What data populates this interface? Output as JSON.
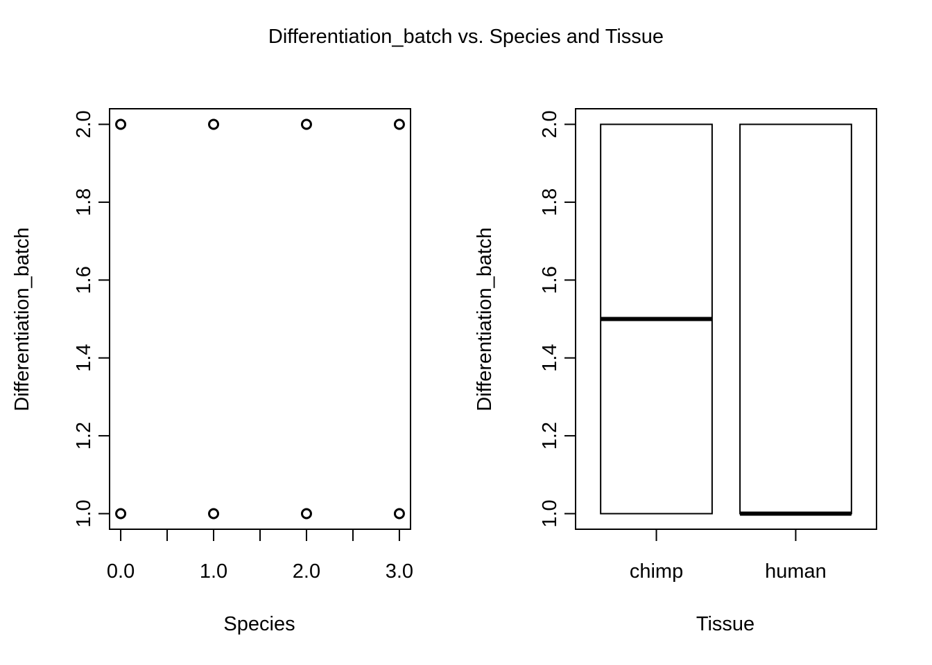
{
  "figure": {
    "title": "Differentiation_batch vs. Species and Tissue"
  },
  "chart_data": [
    {
      "type": "scatter",
      "xlabel": "Species",
      "ylabel": "Differentiation_batch",
      "xlim": [
        -0.12,
        3.12
      ],
      "ylim": [
        0.96,
        2.04
      ],
      "x_ticks": [
        0,
        0.5,
        1,
        1.5,
        2,
        2.5,
        3
      ],
      "x_tick_labels": [
        {
          "value": 0,
          "label": "0.0"
        },
        {
          "value": 1,
          "label": "1.0"
        },
        {
          "value": 2,
          "label": "2.0"
        },
        {
          "value": 3,
          "label": "3.0"
        }
      ],
      "y_ticks": [
        {
          "value": 1.0,
          "label": "1.0"
        },
        {
          "value": 1.2,
          "label": "1.2"
        },
        {
          "value": 1.4,
          "label": "1.4"
        },
        {
          "value": 1.6,
          "label": "1.6"
        },
        {
          "value": 1.8,
          "label": "1.8"
        },
        {
          "value": 2.0,
          "label": "2.0"
        }
      ],
      "points": [
        {
          "x": 0,
          "y": 1
        },
        {
          "x": 1,
          "y": 1
        },
        {
          "x": 2,
          "y": 1
        },
        {
          "x": 3,
          "y": 1
        },
        {
          "x": 0,
          "y": 2
        },
        {
          "x": 1,
          "y": 2
        },
        {
          "x": 2,
          "y": 2
        },
        {
          "x": 3,
          "y": 2
        }
      ],
      "marker": "open-circle",
      "grid": false
    },
    {
      "type": "box",
      "xlabel": "Tissue",
      "ylabel": "Differentiation_batch",
      "ylim": [
        0.96,
        2.04
      ],
      "categories": [
        "chimp",
        "human"
      ],
      "y_ticks": [
        {
          "value": 1.0,
          "label": "1.0"
        },
        {
          "value": 1.2,
          "label": "1.2"
        },
        {
          "value": 1.4,
          "label": "1.4"
        },
        {
          "value": 1.6,
          "label": "1.6"
        },
        {
          "value": 1.8,
          "label": "1.8"
        },
        {
          "value": 2.0,
          "label": "2.0"
        }
      ],
      "boxes": [
        {
          "category": "chimp",
          "min": 1,
          "q1": 1,
          "median": 1.5,
          "q3": 2,
          "max": 2
        },
        {
          "category": "human",
          "min": 1,
          "q1": 1,
          "median": 1,
          "q3": 2,
          "max": 2
        }
      ],
      "grid": false
    }
  ]
}
